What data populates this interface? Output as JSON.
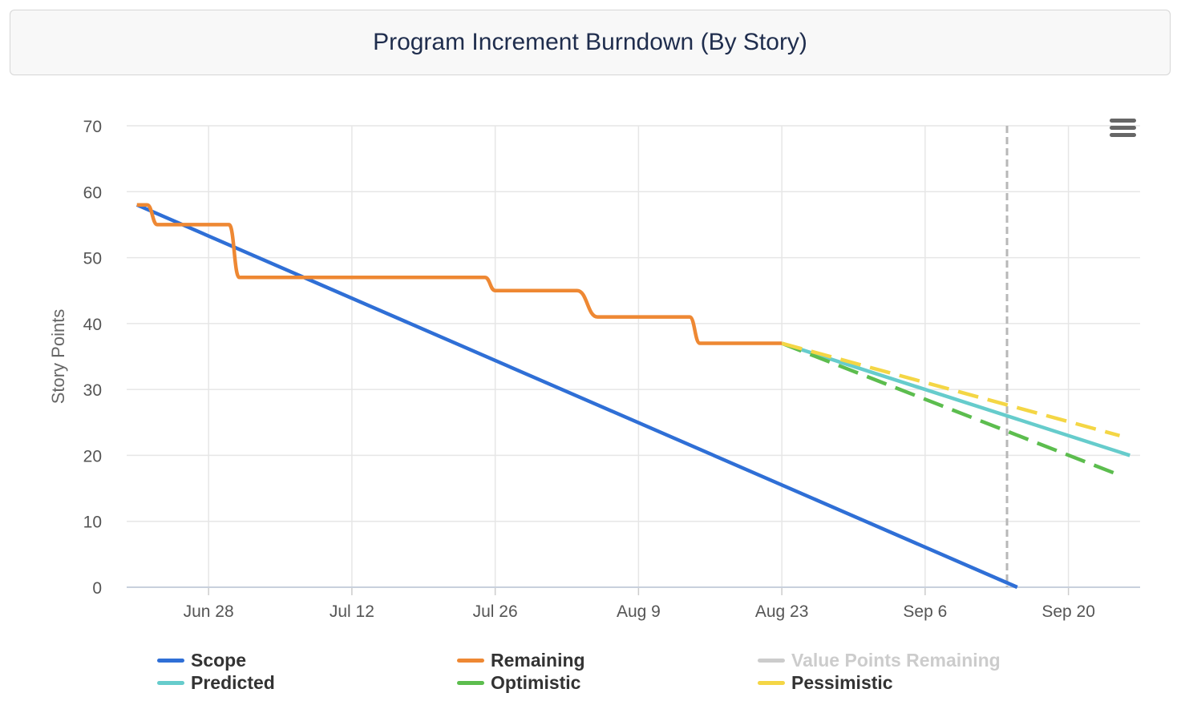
{
  "chart_data": {
    "type": "line",
    "title": "Program Increment Burndown (By Story)",
    "ylabel": "Story Points",
    "xlabel": "",
    "x_type": "date",
    "ylim": [
      0,
      70
    ],
    "xlim": [
      "2023-06-20",
      "2023-09-27"
    ],
    "yticks": [
      0,
      10,
      20,
      30,
      40,
      50,
      60,
      70
    ],
    "xticks": [
      "2023-06-28",
      "2023-07-12",
      "2023-07-26",
      "2023-08-09",
      "2023-08-23",
      "2023-09-06",
      "2023-09-20"
    ],
    "xtick_labels": [
      "Jun 28",
      "Jul 12",
      "Jul 26",
      "Aug 9",
      "Aug 23",
      "Sep 6",
      "Sep 20"
    ],
    "grid": true,
    "legend_position": "bottom",
    "vertical_marker": {
      "date": "2023-09-14",
      "style": "dashed",
      "color": "#b8b8b8"
    },
    "series": [
      {
        "name": "Scope",
        "color": "#2f6fd6",
        "dash": false,
        "visible": true,
        "points": [
          [
            "2023-06-21",
            58
          ],
          [
            "2023-09-15",
            0
          ]
        ]
      },
      {
        "name": "Remaining",
        "color": "#ee8833",
        "dash": false,
        "visible": true,
        "points": [
          [
            "2023-06-21",
            58
          ],
          [
            "2023-06-22",
            58
          ],
          [
            "2023-06-23",
            55
          ],
          [
            "2023-06-30",
            55
          ],
          [
            "2023-07-01",
            47
          ],
          [
            "2023-07-25",
            47
          ],
          [
            "2023-07-26",
            45
          ],
          [
            "2023-08-03",
            45
          ],
          [
            "2023-08-05",
            41
          ],
          [
            "2023-08-14",
            41
          ],
          [
            "2023-08-15",
            37
          ],
          [
            "2023-08-23",
            37
          ]
        ]
      },
      {
        "name": "Value Points Remaining",
        "color": "#cccccc",
        "dash": false,
        "visible": false,
        "points": []
      },
      {
        "name": "Predicted",
        "color": "#66cccc",
        "dash": false,
        "visible": true,
        "points": [
          [
            "2023-08-23",
            37
          ],
          [
            "2023-09-26",
            20
          ]
        ]
      },
      {
        "name": "Optimistic",
        "color": "#5cbd4e",
        "dash": true,
        "visible": true,
        "points": [
          [
            "2023-08-23",
            37
          ],
          [
            "2023-09-25",
            17
          ]
        ]
      },
      {
        "name": "Pessimistic",
        "color": "#f4d645",
        "dash": true,
        "visible": true,
        "points": [
          [
            "2023-08-23",
            37
          ],
          [
            "2023-09-25",
            23
          ]
        ]
      }
    ]
  },
  "toolbar": {
    "menu_icon": "hamburger-menu-icon"
  }
}
